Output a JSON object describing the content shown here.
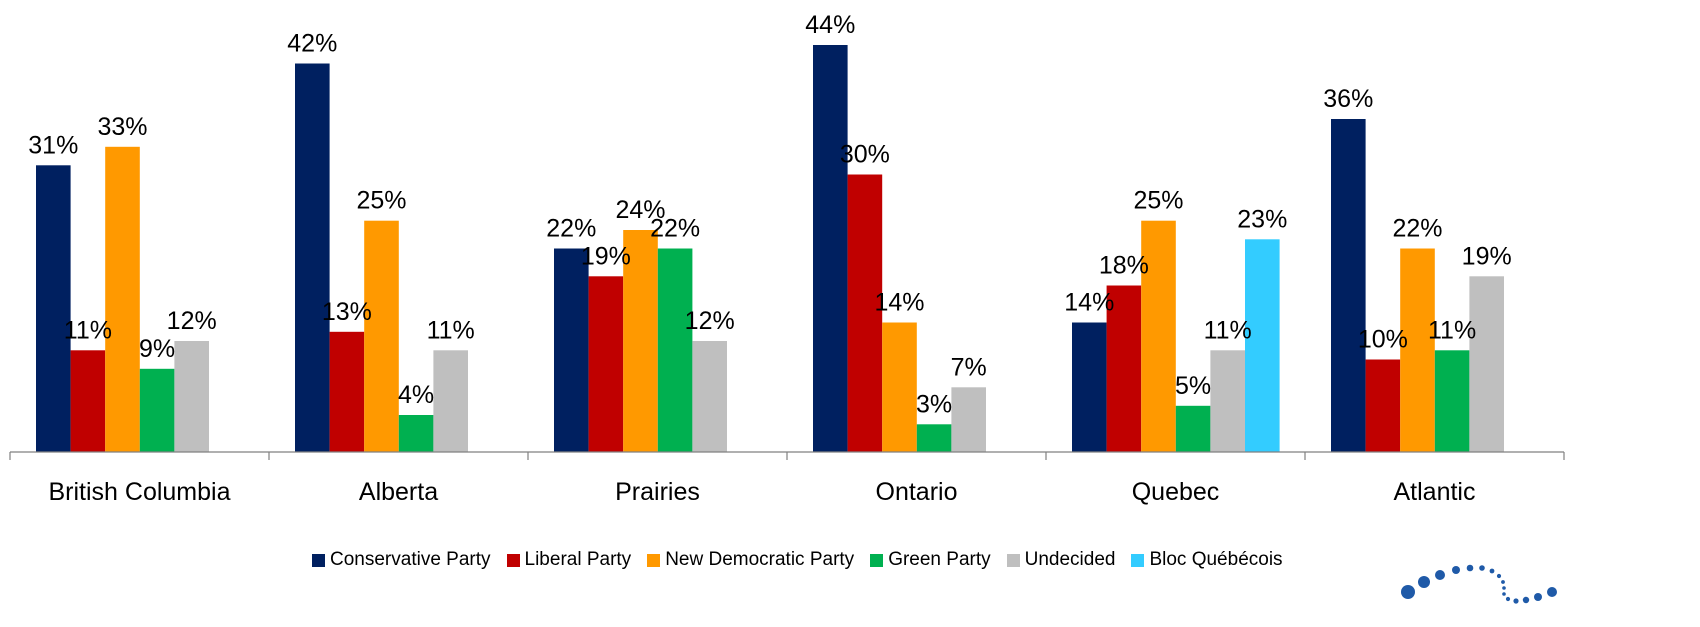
{
  "chart_data": {
    "type": "bar",
    "title": "",
    "xlabel": "",
    "ylabel": "",
    "ylim": [
      0,
      48
    ],
    "grid": false,
    "legend_position": "bottom",
    "value_suffix": "%",
    "categories": [
      "British Columbia",
      "Alberta",
      "Prairies",
      "Ontario",
      "Quebec",
      "Atlantic"
    ],
    "series": [
      {
        "name": "Conservative Party",
        "color": "#002060",
        "values": [
          31,
          42,
          22,
          44,
          14,
          36
        ]
      },
      {
        "name": "Liberal Party",
        "color": "#C00000",
        "values": [
          11,
          13,
          19,
          30,
          18,
          10
        ]
      },
      {
        "name": "New Democratic Party",
        "color": "#FF9900",
        "values": [
          33,
          25,
          24,
          14,
          25,
          22
        ]
      },
      {
        "name": "Green Party",
        "color": "#00B050",
        "values": [
          9,
          4,
          22,
          3,
          5,
          11
        ]
      },
      {
        "name": "Undecided",
        "color": "#BFBFBF",
        "values": [
          12,
          11,
          12,
          7,
          11,
          19
        ]
      },
      {
        "name": "Bloc Québécois",
        "color": "#33CCFF",
        "values": [
          null,
          null,
          null,
          null,
          23,
          null
        ]
      }
    ]
  },
  "logo": {
    "icon": "dotted-swoosh-logo-icon",
    "color": "#1F5AA8"
  }
}
